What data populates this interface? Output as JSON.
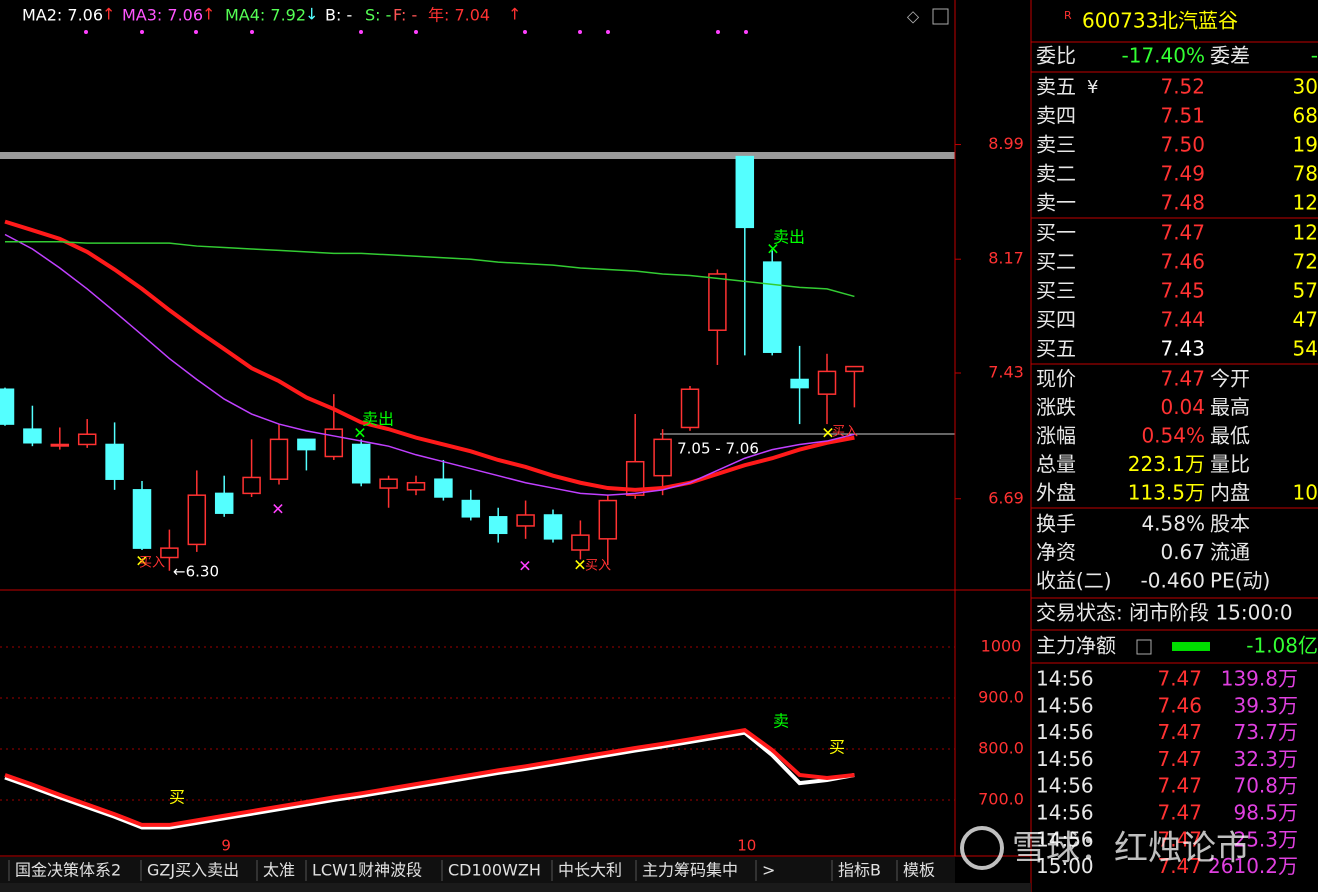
{
  "chart_data": [
    {
      "type": "candlestick",
      "log_scale": true,
      "header": [
        {
          "text": "MA2: 7.06",
          "arrow": "↑",
          "color": "#ffffff"
        },
        {
          "text": "MA3: 7.06",
          "arrow": "↑",
          "color": "#ff55ff"
        },
        {
          "text": "MA4: 7.92",
          "arrow": "↓",
          "color": "#55ff55"
        },
        {
          "text": "B: -",
          "color": "#ffffff"
        },
        {
          "text": "S: -",
          "color": "#55ff55"
        },
        {
          "text": "F: -",
          "color": "#ff5555"
        },
        {
          "text": "年: 7.04",
          "arrow": "↑",
          "color": "#ff3232"
        }
      ],
      "categories": [
        null,
        null,
        null,
        null,
        null,
        null,
        null,
        null,
        "9",
        null,
        null,
        null,
        null,
        null,
        null,
        null,
        null,
        null,
        null,
        null,
        null,
        null,
        null,
        null,
        null,
        null,
        null,
        "10",
        null,
        null,
        null,
        null
      ],
      "open": [
        7.33,
        7.09,
        7.0,
        7.0,
        7.0,
        6.74,
        6.37,
        6.44,
        6.72,
        6.72,
        6.8,
        7.03,
        6.93,
        7.0,
        6.75,
        6.74,
        6.8,
        6.68,
        6.59,
        6.54,
        6.6,
        6.41,
        6.47,
        6.71,
        6.82,
        7.1,
        7.7,
        8.9,
        8.15,
        7.39,
        7.3,
        7.44
      ],
      "high": [
        7.34,
        7.23,
        7.1,
        7.15,
        7.13,
        6.79,
        6.52,
        6.85,
        6.82,
        7.03,
        7.12,
        7.03,
        7.3,
        7.03,
        6.82,
        6.82,
        6.91,
        6.74,
        6.64,
        6.68,
        6.63,
        6.57,
        6.71,
        7.18,
        7.09,
        7.35,
        8.1,
        8.9,
        8.23,
        7.6,
        7.55,
        7.47
      ],
      "low": [
        7.11,
        6.99,
        6.97,
        6.98,
        6.74,
        6.41,
        6.3,
        6.4,
        6.59,
        6.7,
        6.77,
        6.85,
        6.91,
        6.76,
        6.64,
        6.71,
        6.68,
        6.57,
        6.45,
        6.47,
        6.45,
        6.36,
        6.33,
        6.69,
        6.71,
        7.08,
        7.48,
        7.54,
        7.54,
        7.12,
        7.12,
        7.22
      ],
      "close": [
        7.12,
        7.01,
        7.0,
        7.06,
        6.8,
        6.42,
        6.42,
        6.71,
        6.61,
        6.81,
        7.03,
        6.97,
        7.09,
        6.78,
        6.8,
        6.78,
        6.7,
        6.59,
        6.5,
        6.6,
        6.47,
        6.49,
        6.68,
        6.9,
        7.03,
        7.33,
        8.07,
        8.39,
        7.56,
        7.34,
        7.44,
        7.47
      ],
      "up_color": "#ff3232",
      "down_color": "#54ffff",
      "series": [
        {
          "color": "#ff1a1a",
          "values": [
            8.43,
            8.37,
            8.31,
            8.22,
            8.1,
            7.97,
            7.83,
            7.7,
            7.58,
            7.46,
            7.38,
            7.28,
            7.21,
            7.13,
            7.09,
            7.04,
            7.0,
            6.96,
            6.91,
            6.87,
            6.82,
            6.78,
            6.75,
            6.74,
            6.75,
            6.78,
            6.83,
            6.88,
            6.92,
            6.97,
            7.01,
            7.04
          ]
        },
        {
          "color": "#c040ff",
          "values": [
            8.34,
            8.24,
            8.11,
            7.97,
            7.82,
            7.67,
            7.52,
            7.39,
            7.27,
            7.18,
            7.12,
            7.08,
            7.05,
            7.02,
            6.99,
            6.94,
            6.9,
            6.86,
            6.82,
            6.78,
            6.75,
            6.72,
            6.71,
            6.72,
            6.74,
            6.78,
            6.85,
            6.92,
            6.97,
            7.0,
            7.02,
            7.06
          ]
        },
        {
          "color": "#33cc33",
          "values": [
            8.29,
            8.29,
            8.29,
            8.28,
            8.28,
            8.28,
            8.28,
            8.26,
            8.25,
            8.24,
            8.23,
            8.22,
            8.21,
            8.21,
            8.2,
            8.19,
            8.18,
            8.17,
            8.15,
            8.14,
            8.13,
            8.11,
            8.1,
            8.09,
            8.07,
            8.06,
            8.04,
            8.02,
            8.0,
            7.98,
            7.97,
            7.92
          ]
        }
      ],
      "ylim": [
        6.21,
        10.1
      ],
      "yticks": [
        8.99,
        8.17,
        7.43,
        6.69
      ],
      "annotations": [
        {
          "text": "卖出",
          "color": "#00ff00"
        },
        {
          "text": "卖出",
          "color": "#00ff00"
        },
        {
          "text": "买入",
          "color": "#ff3232"
        },
        {
          "text": "买入",
          "color": "#ff3232"
        },
        {
          "text": "买入",
          "color": "#ff3232"
        },
        {
          "text": "←6.30",
          "color": "#ffffff"
        },
        {
          "text": "7.05 - 7.06",
          "color": "#ffffff"
        }
      ]
    },
    {
      "type": "line",
      "series": [
        {
          "color": "#ffffff",
          "values": [
            744,
            725,
            705,
            686,
            667,
            646,
            646,
            655,
            664,
            673,
            682,
            691,
            700,
            708,
            717,
            726,
            735,
            744,
            753,
            761,
            770,
            779,
            788,
            797,
            805,
            814,
            823,
            832,
            788,
            733,
            739,
            749
          ]
        },
        {
          "color": "#ff1a1a",
          "values": [
            749,
            730,
            710,
            691,
            672,
            651,
            651,
            660,
            669,
            678,
            687,
            696,
            705,
            713,
            722,
            731,
            740,
            749,
            758,
            766,
            775,
            784,
            793,
            802,
            810,
            819,
            828,
            837,
            798,
            749,
            743,
            749
          ]
        }
      ],
      "ylim": [
        592,
        1108
      ],
      "yticks": [
        1000,
        {
          "value": 900,
          "label": "900.0"
        },
        {
          "value": 800,
          "label": "800.0"
        },
        {
          "value": 700,
          "label": "700.0"
        }
      ],
      "grid": true,
      "annotations": [
        {
          "text": "卖",
          "color": "#00ff00"
        },
        {
          "text": "买",
          "color": "#ffff00"
        },
        {
          "text": "买",
          "color": "#ffff00"
        }
      ]
    }
  ],
  "quote": {
    "badge": "R",
    "code": "600733",
    "name": "北汽蓝谷",
    "ratio": [
      "委比",
      "-17.40%",
      "委差",
      "-"
    ],
    "asks": [
      [
        "卖五",
        "7.52",
        "30"
      ],
      [
        "卖四",
        "7.51",
        "68"
      ],
      [
        "卖三",
        "7.50",
        "19"
      ],
      [
        "卖二",
        "7.49",
        "78"
      ],
      [
        "卖一",
        "7.48",
        "12"
      ]
    ],
    "ask_icon": "¥",
    "bids": [
      [
        "买一",
        "7.47",
        "12"
      ],
      [
        "买二",
        "7.46",
        "72"
      ],
      [
        "买三",
        "7.45",
        "57"
      ],
      [
        "买四",
        "7.44",
        "47"
      ],
      [
        "买五",
        "7.43",
        "54"
      ]
    ],
    "stats": [
      [
        "现价",
        "7.47",
        "今开"
      ],
      [
        "涨跌",
        "0.04",
        "最高"
      ],
      [
        "涨幅",
        "0.54%",
        "最低"
      ],
      [
        "总量",
        "223.1万",
        "量比"
      ],
      [
        "外盘",
        "113.5万",
        "内盘",
        "10"
      ]
    ],
    "finance": [
      [
        "换手",
        "4.58%",
        "股本"
      ],
      [
        "净资",
        "0.67",
        "流通"
      ],
      [
        "收益(二)",
        "-0.460",
        "PE(动)"
      ]
    ],
    "status": "交易状态: 闭市阶段 15:00:0",
    "main_force": [
      "主力净额",
      "-1.08亿"
    ],
    "ticks": [
      [
        "14:56",
        "7.47",
        "139.8万"
      ],
      [
        "14:56",
        "7.46",
        "39.3万"
      ],
      [
        "14:56",
        "7.47",
        "73.7万"
      ],
      [
        "14:56",
        "7.47",
        "32.3万"
      ],
      [
        "14:56",
        "7.47",
        "70.8万"
      ],
      [
        "14:56",
        "7.47",
        "98.5万"
      ],
      [
        "14:56",
        "7.47",
        "25.3万"
      ],
      [
        "15:00",
        "7.47",
        "2610.2万"
      ]
    ]
  },
  "tabs": [
    "国金决策体系2",
    "GZJ买入卖出",
    "太准",
    "LCW1财神波段",
    "CD100WZH",
    "中长大利",
    "主力筹码集中",
    ">",
    "指标B",
    "模板"
  ],
  "watermark": "雪球：红烛论市"
}
